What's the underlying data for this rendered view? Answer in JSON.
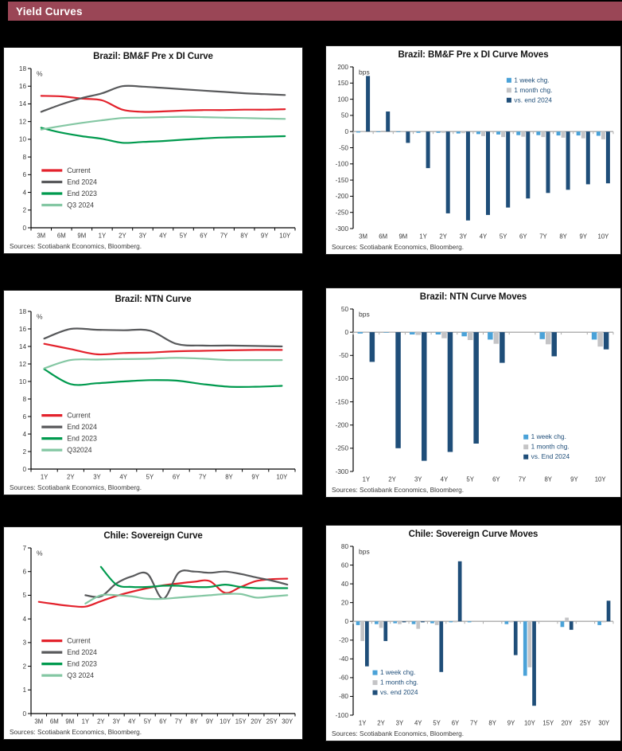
{
  "header": {
    "title": "Yield Curves",
    "bar_color": "#9A4656"
  },
  "text_colors": {
    "axis": "#3a3a3a",
    "bar_legend_text": "#1F4E79",
    "line_legend_text": "#3a3a3a"
  },
  "chart_data": [
    {
      "id": "bmf-curve",
      "type": "line",
      "title": "Brazil: BM&F Pre x DI Curve",
      "unit": "%",
      "ylim": [
        0,
        18
      ],
      "ytick_step": 2,
      "grid": false,
      "categories": [
        "3M",
        "6M",
        "9M",
        "1Y",
        "2Y",
        "3Y",
        "4Y",
        "5Y",
        "6Y",
        "7Y",
        "8Y",
        "9Y",
        "10Y"
      ],
      "series": [
        {
          "name": "Current",
          "color": "#E3222C",
          "values": [
            14.9,
            14.85,
            14.6,
            14.4,
            13.35,
            13.1,
            13.15,
            13.25,
            13.3,
            13.3,
            13.35,
            13.35,
            13.4
          ]
        },
        {
          "name": "End 2024",
          "color": "#58595B",
          "values": [
            13.1,
            13.95,
            14.65,
            15.2,
            16.0,
            15.95,
            15.8,
            15.65,
            15.5,
            15.35,
            15.2,
            15.1,
            15.0
          ]
        },
        {
          "name": "End 2023",
          "color": "#009A4E",
          "values": [
            11.3,
            10.75,
            10.35,
            10.05,
            9.6,
            9.7,
            9.8,
            9.95,
            10.1,
            10.2,
            10.25,
            10.3,
            10.35
          ]
        },
        {
          "name": "Q3 2024",
          "color": "#84C7A3",
          "values": [
            11.1,
            11.5,
            11.85,
            12.15,
            12.4,
            12.45,
            12.5,
            12.55,
            12.5,
            12.45,
            12.4,
            12.35,
            12.3
          ]
        }
      ],
      "legend": {
        "x": 0.04,
        "y": 0.655
      },
      "sources": "Sources: Scotiabank Economics, Bloomberg."
    },
    {
      "id": "bmf-moves",
      "type": "bar",
      "title": "Brazil: BM&F Pre x DI Curve Moves",
      "unit": "bps",
      "ylim": [
        -300,
        200
      ],
      "ytick_step": 50,
      "grid": false,
      "categories": [
        "3M",
        "6M",
        "9M",
        "1Y",
        "2Y",
        "3Y",
        "4Y",
        "5Y",
        "6Y",
        "7Y",
        "8Y",
        "9Y",
        "10Y"
      ],
      "series": [
        {
          "name": "1 week chg.",
          "color": "#4AA2D8",
          "values": [
            -3,
            -2,
            -2,
            -4,
            -4,
            -6,
            -8,
            -9,
            -11,
            -11,
            -12,
            -12,
            -13
          ]
        },
        {
          "name": "1 month chg.",
          "color": "#C4C4C6",
          "values": [
            -2,
            3,
            2,
            -2,
            -4,
            -5,
            -14,
            -17,
            -16,
            -17,
            -19,
            -21,
            -24
          ]
        },
        {
          "name": "vs. end 2024",
          "color": "#1F4E79",
          "values": [
            172,
            62,
            -35,
            -113,
            -253,
            -275,
            -258,
            -235,
            -207,
            -190,
            -180,
            -163,
            -160
          ]
        }
      ],
      "legend": {
        "x": 0.59,
        "y": 0.095
      },
      "sources": "Sources: Scotiabank Economics, Bloomberg."
    },
    {
      "id": "ntn-curve",
      "type": "line",
      "title": "Brazil: NTN Curve",
      "unit": "%",
      "ylim": [
        0,
        18
      ],
      "ytick_step": 2,
      "grid": false,
      "categories": [
        "1Y",
        "2Y",
        "3Y",
        "4Y",
        "5Y",
        "6Y",
        "7Y",
        "8Y",
        "9Y",
        "10Y"
      ],
      "series": [
        {
          "name": "Current",
          "color": "#E3222C",
          "values": [
            14.3,
            13.7,
            13.1,
            13.25,
            13.3,
            13.45,
            13.5,
            13.55,
            13.6,
            13.6
          ]
        },
        {
          "name": "End 2024",
          "color": "#58595B",
          "values": [
            14.9,
            16.0,
            15.9,
            15.85,
            15.8,
            14.3,
            14.1,
            14.1,
            14.05,
            14.0
          ]
        },
        {
          "name": "End 2023",
          "color": "#009A4E",
          "values": [
            11.4,
            9.7,
            9.8,
            10.0,
            10.15,
            10.1,
            9.7,
            9.4,
            9.4,
            9.5
          ]
        },
        {
          "name": "Q32024",
          "color": "#84C7A3",
          "values": [
            11.5,
            12.45,
            12.5,
            12.55,
            12.6,
            12.7,
            12.6,
            12.45,
            12.45,
            12.45
          ]
        }
      ],
      "legend": {
        "x": 0.04,
        "y": 0.675
      },
      "sources": "Sources: Scotiabank Economics, Bloomberg."
    },
    {
      "id": "ntn-moves",
      "type": "bar",
      "title": "Brazil: NTN Curve Moves",
      "unit": "bps",
      "ylim": [
        -300,
        50
      ],
      "ytick_step": 50,
      "grid": false,
      "categories": [
        "1Y",
        "2Y",
        "3Y",
        "4Y",
        "5Y",
        "6Y",
        "7Y",
        "8Y",
        "9Y",
        "10Y"
      ],
      "series": [
        {
          "name": "1 week chg.",
          "color": "#4AA2D8",
          "values": [
            -3,
            -1,
            -5,
            -5,
            -9,
            -16,
            0,
            -15,
            0,
            -16
          ]
        },
        {
          "name": "1 month chg.",
          "color": "#C4C4C6",
          "values": [
            -1,
            -1,
            -6,
            -13,
            -17,
            -25,
            0,
            -26,
            0,
            -31
          ]
        },
        {
          "name": "vs. End 2024",
          "color": "#1F4E79",
          "values": [
            -64,
            -250,
            -277,
            -258,
            -240,
            -66,
            0,
            -52,
            0,
            -37
          ]
        }
      ],
      "legend": {
        "x": 0.655,
        "y": 0.8
      },
      "sources": "Sources: Scotiabank Economics, Bloomberg."
    },
    {
      "id": "chile-curve",
      "type": "line",
      "title": "Chile: Sovereign Curve",
      "unit": "%",
      "ylim": [
        0,
        7
      ],
      "ytick_step": 1,
      "grid": false,
      "categories": [
        "3M",
        "6M",
        "9M",
        "1Y",
        "2Y",
        "3Y",
        "4Y",
        "5Y",
        "6Y",
        "7Y",
        "8Y",
        "9Y",
        "10Y",
        "15Y",
        "20Y",
        "25Y",
        "30Y"
      ],
      "series": [
        {
          "name": "Current",
          "color": "#E3222C",
          "values": [
            4.72,
            4.63,
            4.55,
            4.52,
            4.75,
            4.97,
            5.15,
            5.3,
            5.42,
            5.5,
            5.57,
            5.6,
            5.1,
            5.35,
            5.6,
            5.68,
            5.7
          ]
        },
        {
          "name": "End 2024",
          "color": "#58595B",
          "values": [
            null,
            null,
            null,
            5.0,
            4.95,
            5.5,
            5.8,
            5.9,
            4.85,
            5.95,
            6.0,
            5.95,
            6.0,
            5.9,
            5.75,
            5.62,
            5.45
          ]
        },
        {
          "name": "End 2023",
          "color": "#009A4E",
          "values": [
            null,
            null,
            null,
            null,
            6.2,
            5.45,
            5.35,
            5.35,
            5.4,
            5.4,
            5.35,
            5.35,
            5.45,
            5.35,
            5.3,
            5.3,
            5.3
          ]
        },
        {
          "name": "Q3 2024",
          "color": "#84C7A3",
          "values": [
            null,
            null,
            null,
            4.65,
            5.0,
            5.0,
            4.95,
            4.85,
            4.85,
            4.9,
            4.95,
            5.0,
            5.05,
            5.05,
            4.9,
            4.95,
            5.0
          ]
        }
      ],
      "legend": {
        "x": 0.04,
        "y": 0.575
      },
      "sources": "Sources: Scotiabank Economics, Bloomberg."
    },
    {
      "id": "chile-moves",
      "type": "bar",
      "title": "Chile: Sovereign Curve Moves",
      "unit": "bps",
      "ylim": [
        -100,
        80
      ],
      "ytick_step": 20,
      "grid": false,
      "categories": [
        "1Y",
        "2Y",
        "3Y",
        "4Y",
        "5Y",
        "6Y",
        "7Y",
        "8Y",
        "9Y",
        "10Y",
        "15Y",
        "20Y",
        "25Y",
        "30Y"
      ],
      "series": [
        {
          "name": "1 week chg.",
          "color": "#4AA2D8",
          "values": [
            -4,
            -3,
            -2,
            -3,
            -2,
            -1,
            -1,
            0,
            -3,
            -58,
            0,
            -6,
            0,
            -4
          ]
        },
        {
          "name": "1 month chg.",
          "color": "#C4C4C6",
          "values": [
            -21,
            -7,
            -3,
            -8,
            -4,
            -1,
            0,
            0,
            -1,
            -49,
            0,
            4,
            0,
            -1
          ]
        },
        {
          "name": "vs. end 2024",
          "color": "#1F4E79",
          "values": [
            -48,
            -21,
            -1,
            -1,
            -54,
            64,
            0,
            0,
            -36,
            -90,
            0,
            -9,
            0,
            22
          ]
        }
      ],
      "legend": {
        "x": 0.075,
        "y": 0.76
      },
      "sources": "Sources: Scotiabank Economics, Bloomberg."
    }
  ]
}
